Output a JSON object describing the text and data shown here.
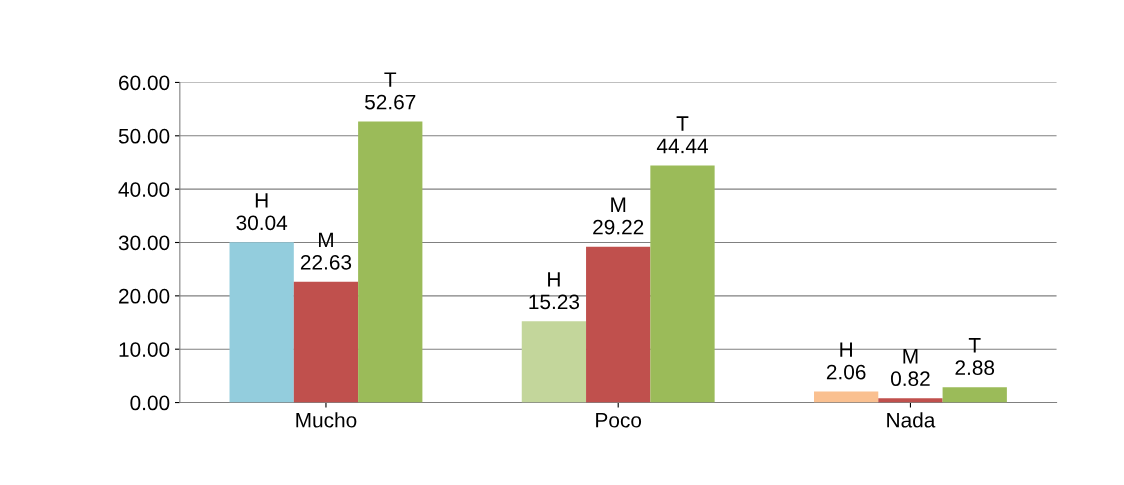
{
  "chart_data": {
    "type": "bar",
    "categories": [
      "Mucho",
      "Poco",
      "Nada"
    ],
    "series": [
      {
        "name": "H",
        "colors": [
          "#93cddd",
          "#c3d69b",
          "#fac090"
        ],
        "values": [
          30.04,
          15.23,
          2.06
        ]
      },
      {
        "name": "M",
        "color": "#c0504d",
        "values": [
          22.63,
          29.22,
          0.82
        ]
      },
      {
        "name": "T",
        "color": "#9bbb59",
        "values": [
          52.67,
          44.44,
          2.88
        ]
      }
    ],
    "ylim": [
      0,
      60
    ],
    "yticks": [
      {
        "value": 0,
        "label": "0.00"
      },
      {
        "value": 10,
        "label": "10.00"
      },
      {
        "value": 20,
        "label": "20.00"
      },
      {
        "value": 30,
        "label": "30.00"
      },
      {
        "value": 40,
        "label": "40.00"
      },
      {
        "value": 50,
        "label": "50.00"
      },
      {
        "value": 60,
        "label": "60.00"
      }
    ],
    "grid": "y",
    "data_labels": true,
    "legend": false
  }
}
